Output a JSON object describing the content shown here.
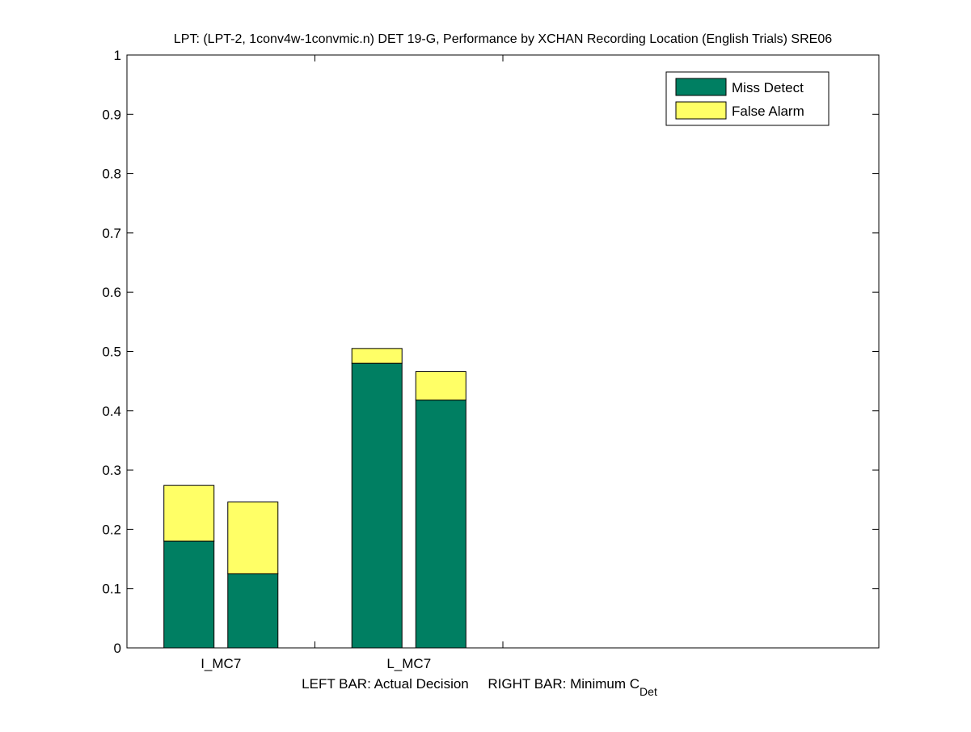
{
  "chart_data": {
    "type": "bar",
    "stacked": true,
    "title": "LPT: (LPT-2, 1conv4w-1convmic.n) DET 19-G,   Performance by XCHAN Recording Location (English Trials) SRE06",
    "xlabel": {
      "left": "LEFT BAR: Actual Decision",
      "right": "RIGHT BAR: Minimum C",
      "right_subscript": "Det"
    },
    "ylim": [
      0,
      1
    ],
    "yticks": [
      "0",
      "0.1",
      "0.2",
      "0.3",
      "0.4",
      "0.5",
      "0.6",
      "0.7",
      "0.8",
      "0.9",
      "1"
    ],
    "xlim": [
      0,
      4
    ],
    "category_boundaries": [
      1,
      2
    ],
    "categories": [
      {
        "label": "I_MC7",
        "center": 0.5
      },
      {
        "label": "L_MC7",
        "center": 1.5
      }
    ],
    "bars": [
      {
        "category": "I_MC7",
        "kind": "Actual Decision",
        "x": 0.33,
        "miss": 0.18,
        "false_alarm": 0.094
      },
      {
        "category": "I_MC7",
        "kind": "Minimum CDet",
        "x": 0.67,
        "miss": 0.125,
        "false_alarm": 0.121
      },
      {
        "category": "L_MC7",
        "kind": "Actual Decision",
        "x": 1.33,
        "miss": 0.48,
        "false_alarm": 0.025
      },
      {
        "category": "L_MC7",
        "kind": "Minimum CDet",
        "x": 1.67,
        "miss": 0.418,
        "false_alarm": 0.048
      }
    ],
    "series": [
      {
        "name": "Miss Detect",
        "color": "#007f62"
      },
      {
        "name": "False Alarm",
        "color": "#ffff66"
      }
    ],
    "legend": "top-right",
    "grid": false
  }
}
